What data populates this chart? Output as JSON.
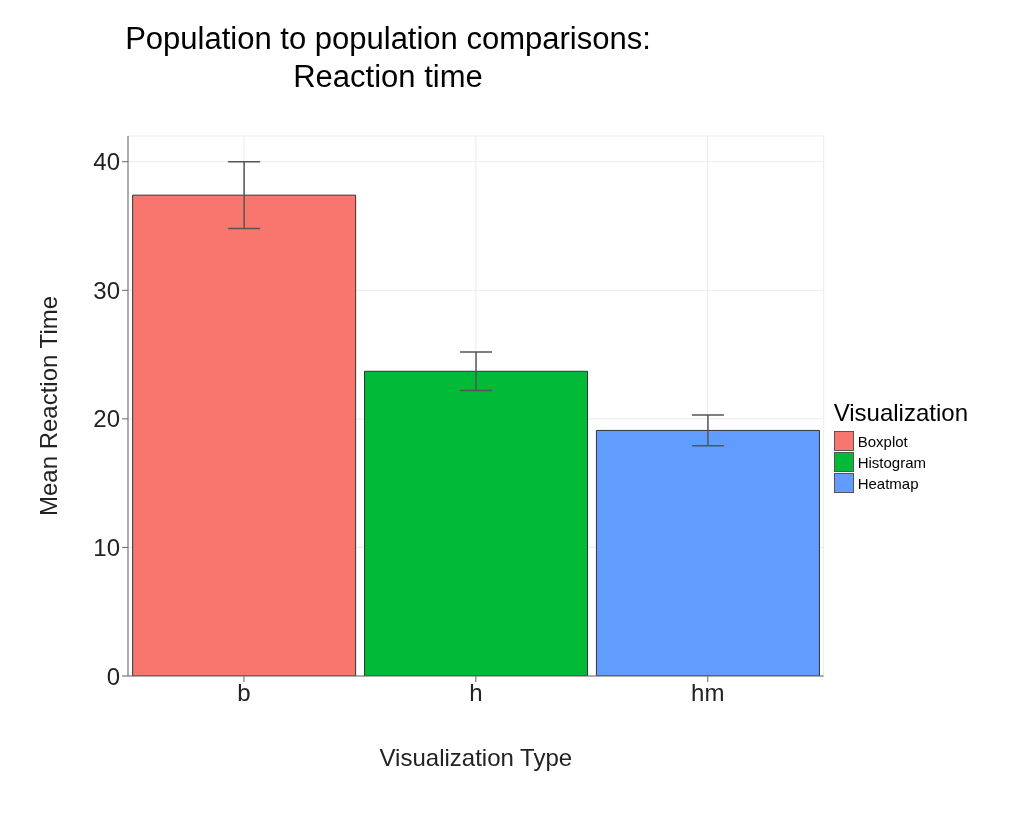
{
  "chart_data": {
    "type": "bar",
    "title": "Population to population comparisons:\nReaction time",
    "xlabel": "Visualization Type",
    "ylabel": "Mean Reaction Time",
    "legend_title": "Visualization",
    "categories": [
      "b",
      "h",
      "hm"
    ],
    "series": [
      {
        "name": "Boxplot",
        "color": "#f8766d",
        "values": [
          37.4,
          null,
          null
        ],
        "errors": [
          2.6,
          null,
          null
        ]
      },
      {
        "name": "Histogram",
        "color": "#00ba38",
        "values": [
          null,
          23.7,
          null
        ],
        "errors": [
          null,
          1.5,
          null
        ]
      },
      {
        "name": "Heatmap",
        "color": "#619cff",
        "values": [
          null,
          null,
          19.1
        ],
        "errors": [
          null,
          null,
          1.2
        ]
      }
    ],
    "ylim": [
      0,
      42
    ],
    "yticks": [
      0,
      10,
      20,
      30,
      40
    ],
    "grid": true,
    "legend": "right"
  }
}
